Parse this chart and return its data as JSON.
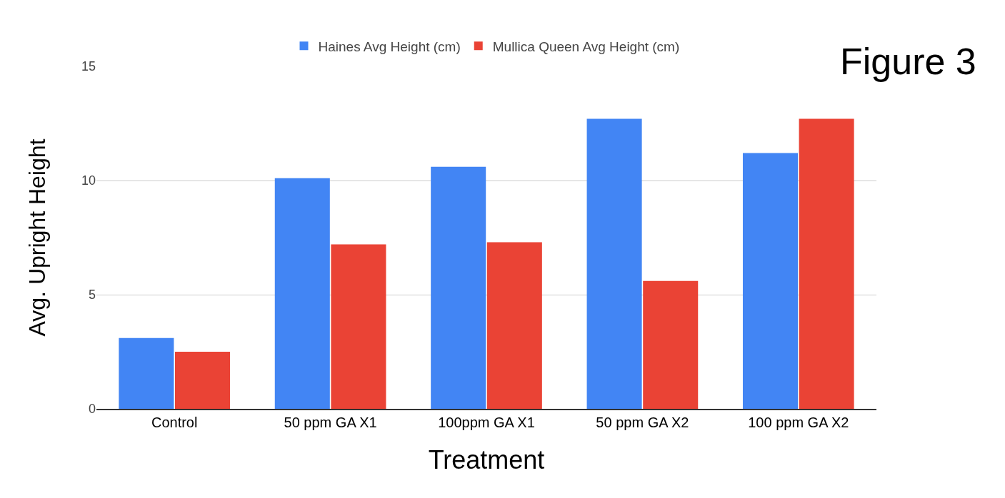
{
  "chart_data": {
    "type": "bar",
    "xlabel": "Treatment",
    "ylabel": "Avg. Upright Height",
    "categories": [
      "Control",
      "50 ppm GA X1",
      "100ppm GA X1",
      "50 ppm GA X2",
      "100 ppm GA X2"
    ],
    "series": [
      {
        "name": "Haines Avg Height (cm)",
        "color": "#4285f4",
        "values": [
          3.1,
          10.1,
          10.6,
          12.7,
          11.2
        ]
      },
      {
        "name": "Mullica Queen Avg Height (cm)",
        "color": "#ea4335",
        "values": [
          2.5,
          7.2,
          7.3,
          5.6,
          12.7
        ]
      }
    ],
    "ylim": [
      0,
      15
    ],
    "yticks": [
      0,
      5,
      10,
      15
    ],
    "grid": "y",
    "legend": "top",
    "annotations": [
      "Figure 3"
    ]
  }
}
